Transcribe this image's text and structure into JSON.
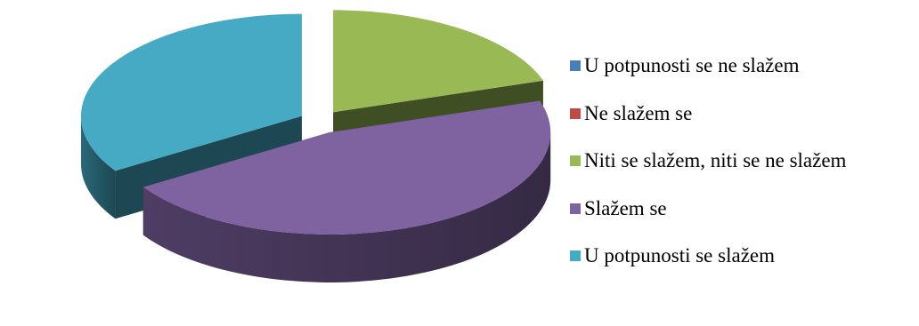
{
  "chart_data": {
    "type": "pie",
    "categories": [
      "U potpunosti se ne slažem",
      "Ne slažem se",
      "Niti se slažem, niti se ne slažem",
      "Slažem se",
      "U potpunosti se slažem"
    ],
    "values": [
      0,
      0,
      20,
      46,
      34
    ],
    "colors": [
      "#4a7ebb",
      "#be4b48",
      "#98b954",
      "#7f63a1",
      "#46aac5"
    ],
    "three_d": true,
    "exploded": true,
    "legend_position": "right"
  }
}
